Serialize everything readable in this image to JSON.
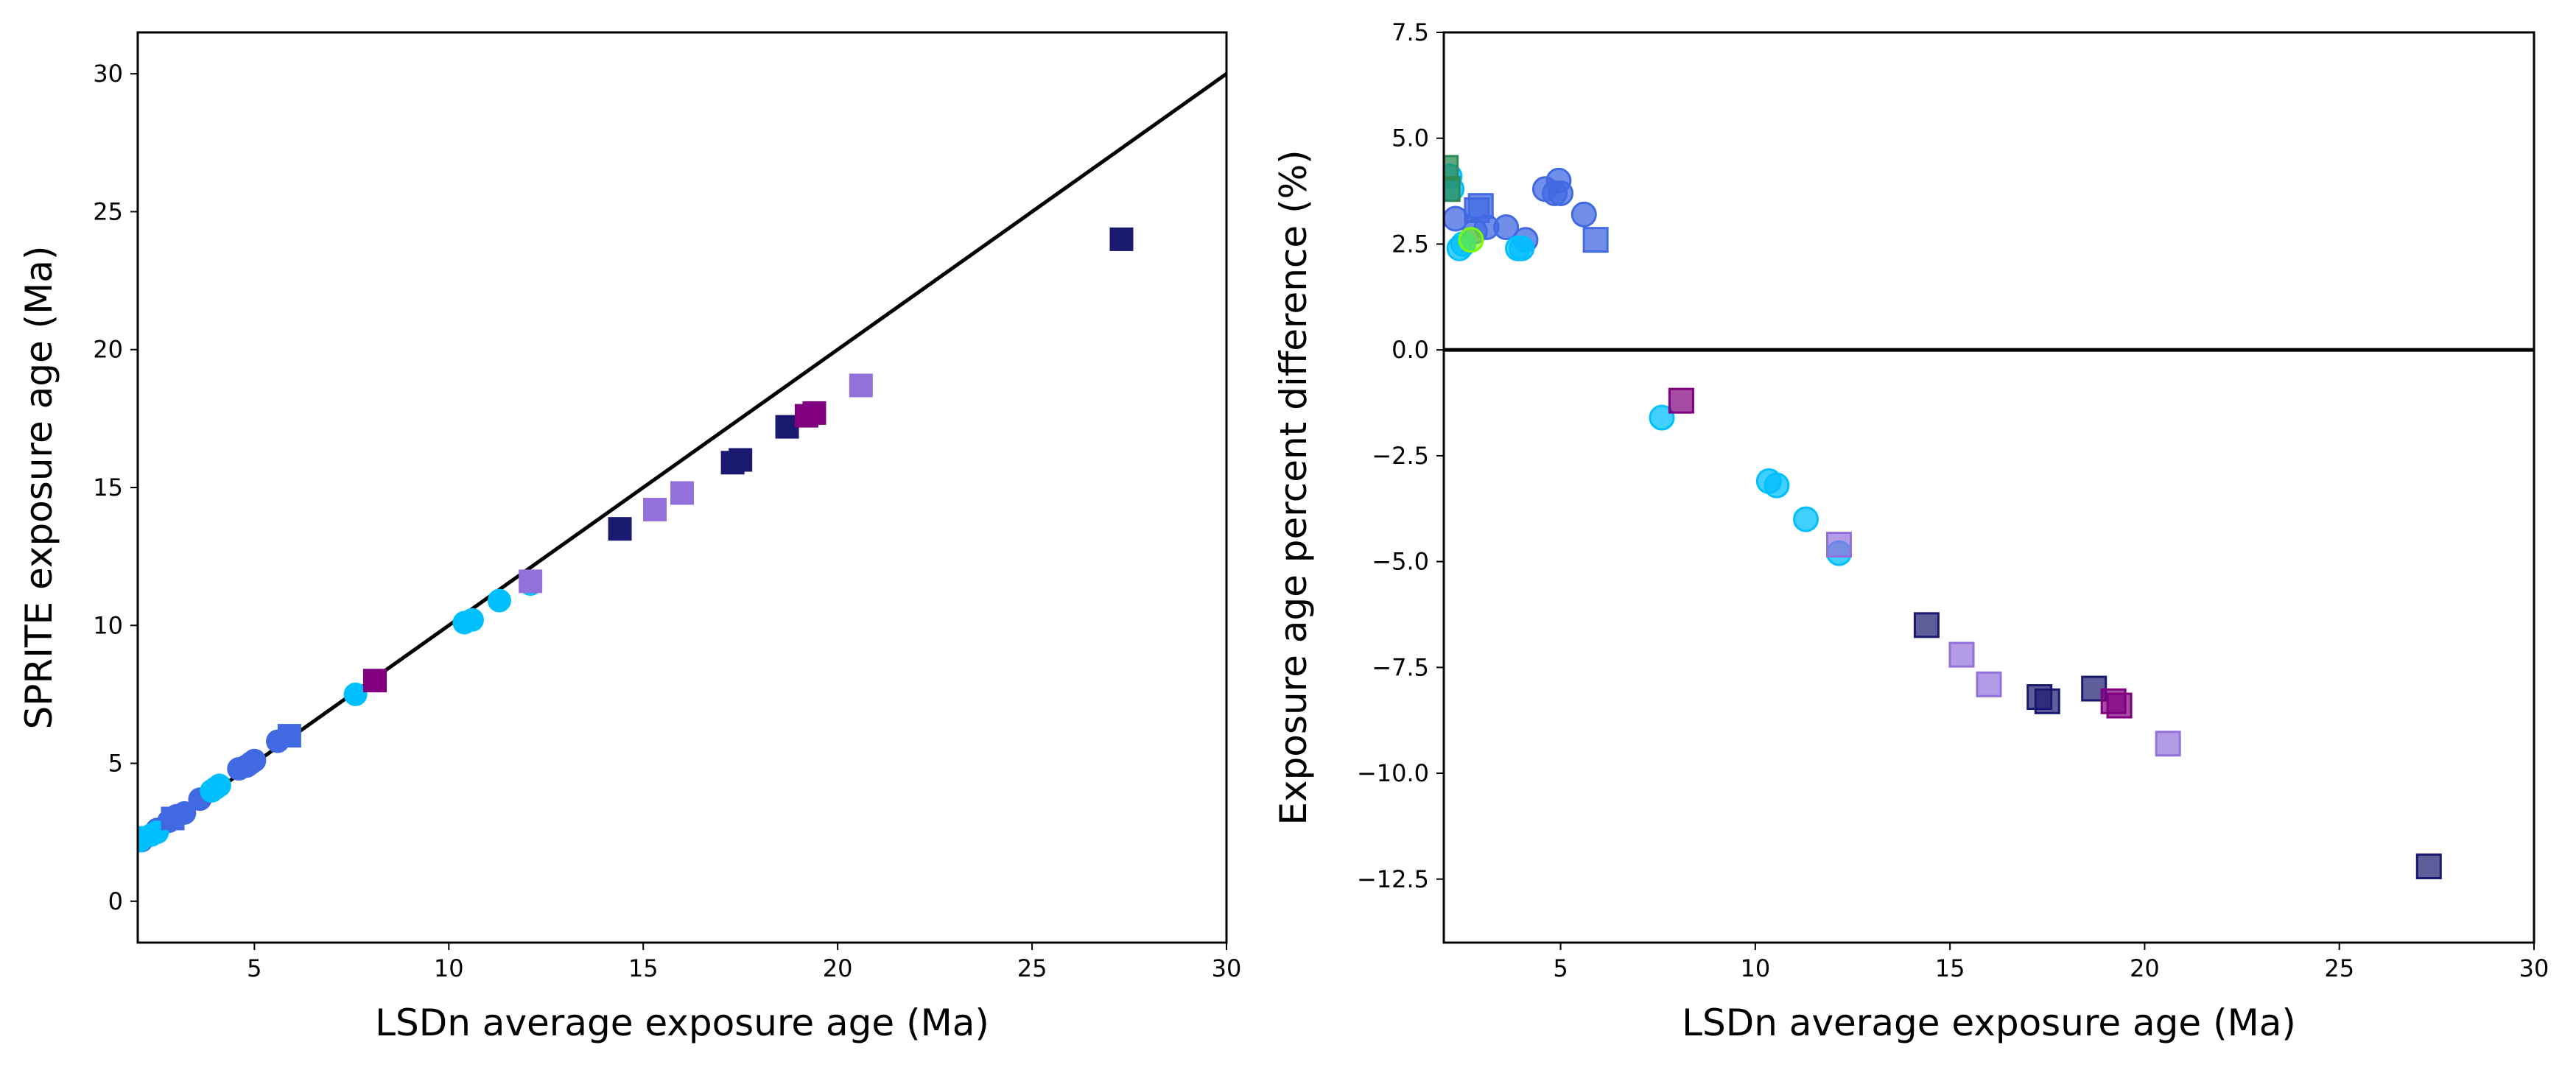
{
  "chart_data": [
    {
      "type": "scatter",
      "xlabel": "LSDn average exposure age (Ma)",
      "ylabel": "SPRITE exposure age (Ma)",
      "xlim": [
        2,
        30
      ],
      "ylim": [
        -1.5,
        31.5
      ],
      "xticks": [
        5,
        10,
        15,
        20,
        25,
        30
      ],
      "yticks": [
        0,
        5,
        10,
        15,
        20,
        25,
        30
      ],
      "xtick_labels": [
        "5",
        "10",
        "15",
        "20",
        "25",
        "30"
      ],
      "ytick_labels": [
        "0",
        "5",
        "10",
        "15",
        "20",
        "25",
        "30"
      ],
      "grid": false,
      "legend": "none",
      "reference_line": {
        "x": [
          2,
          30
        ],
        "y": [
          2,
          30
        ],
        "color": "#000000"
      },
      "series": [
        {
          "marker": "circle",
          "color": "#4169E1",
          "alpha": 1.0,
          "x": [
            2.1,
            2.5,
            2.8,
            3.0,
            3.2,
            3.6,
            4.6,
            4.8,
            4.9,
            5.0,
            5.6
          ],
          "y": [
            2.2,
            2.6,
            2.9,
            3.1,
            3.2,
            3.7,
            4.8,
            4.9,
            5.0,
            5.1,
            5.8
          ]
        },
        {
          "marker": "circle",
          "color": "#00BFFF",
          "alpha": 1.0,
          "x": [
            2.05,
            2.1,
            2.35,
            2.5,
            3.9,
            4.1,
            4.0,
            7.6,
            10.4,
            10.6,
            11.3,
            12.1
          ],
          "y": [
            2.2,
            2.3,
            2.4,
            2.5,
            4.0,
            4.2,
            4.1,
            7.5,
            10.1,
            10.2,
            10.9,
            11.5
          ]
        },
        {
          "marker": "square",
          "color": "#4169E1",
          "alpha": 1.0,
          "x": [
            2.9,
            5.9
          ],
          "y": [
            3.0,
            6.0
          ]
        },
        {
          "marker": "square",
          "color": "#191970",
          "alpha": 1.0,
          "x": [
            14.4,
            17.3,
            17.5,
            18.7,
            27.3
          ],
          "y": [
            13.5,
            15.9,
            16.0,
            17.2,
            24.0
          ]
        },
        {
          "marker": "square",
          "color": "#9370DB",
          "alpha": 1.0,
          "x": [
            12.1,
            15.3,
            16.0,
            20.6
          ],
          "y": [
            11.6,
            14.2,
            14.8,
            18.7
          ]
        },
        {
          "marker": "square",
          "color": "#800080",
          "alpha": 1.0,
          "x": [
            8.1,
            19.2,
            19.4
          ],
          "y": [
            8.0,
            17.6,
            17.7
          ]
        }
      ]
    },
    {
      "type": "scatter",
      "xlabel": "LSDn average exposure age (Ma)",
      "ylabel": "Exposure age percent difference (%)",
      "xlim": [
        2,
        30
      ],
      "ylim": [
        -14,
        7.5
      ],
      "xticks": [
        5,
        10,
        15,
        20,
        25,
        30
      ],
      "yticks": [
        7.5,
        5.0,
        2.5,
        0.0,
        -2.5,
        -5.0,
        -7.5,
        -10.0,
        -12.5
      ],
      "xtick_labels": [
        "5",
        "10",
        "15",
        "20",
        "25",
        "30"
      ],
      "ytick_labels": [
        "7.5",
        "5.0",
        "2.5",
        "0.0",
        "−2.5",
        "−5.0",
        "−7.5",
        "−10.0",
        "−12.5"
      ],
      "grid": false,
      "legend": "none",
      "reference_line": {
        "x": [
          2,
          30
        ],
        "y": [
          0,
          0
        ],
        "color": "#000000"
      },
      "series": [
        {
          "marker": "circle",
          "color": "#4169E1",
          "alpha": 0.75,
          "x": [
            2.3,
            2.8,
            3.1,
            3.6,
            4.1,
            4.6,
            4.85,
            5.0,
            4.95,
            5.6
          ],
          "y": [
            3.1,
            2.8,
            2.9,
            2.9,
            2.6,
            3.8,
            3.7,
            3.7,
            4.0,
            3.2
          ]
        },
        {
          "marker": "circle",
          "color": "#00BFFF",
          "alpha": 0.75,
          "x": [
            2.15,
            2.2,
            2.4,
            2.5,
            3.9,
            4.0,
            7.6,
            10.35,
            10.55,
            11.3,
            12.15
          ],
          "y": [
            4.1,
            3.8,
            2.4,
            2.5,
            2.4,
            2.4,
            -1.6,
            -3.1,
            -3.2,
            -4.0,
            -4.8
          ]
        },
        {
          "marker": "circle",
          "color": "#7CFC00",
          "alpha": 0.6,
          "x": [
            2.7
          ],
          "y": [
            2.6
          ]
        },
        {
          "marker": "square",
          "color": "#2E8B57",
          "alpha": 0.75,
          "x": [
            2.05,
            2.1
          ],
          "y": [
            4.3,
            3.8
          ]
        },
        {
          "marker": "square",
          "color": "#4169E1",
          "alpha": 0.75,
          "x": [
            2.85,
            2.95,
            5.9
          ],
          "y": [
            3.3,
            3.4,
            2.6
          ]
        },
        {
          "marker": "square",
          "color": "#191970",
          "alpha": 0.7,
          "x": [
            14.4,
            17.3,
            17.5,
            18.7,
            27.3
          ],
          "y": [
            -6.5,
            -8.2,
            -8.3,
            -8.0,
            -12.2
          ]
        },
        {
          "marker": "square",
          "color": "#9370DB",
          "alpha": 0.7,
          "x": [
            12.15,
            15.3,
            16.0,
            20.6
          ],
          "y": [
            -4.6,
            -7.2,
            -7.9,
            -9.3
          ]
        },
        {
          "marker": "square",
          "color": "#800080",
          "alpha": 0.7,
          "x": [
            8.1,
            19.2,
            19.35
          ],
          "y": [
            -1.2,
            -8.3,
            -8.4
          ]
        }
      ]
    }
  ]
}
